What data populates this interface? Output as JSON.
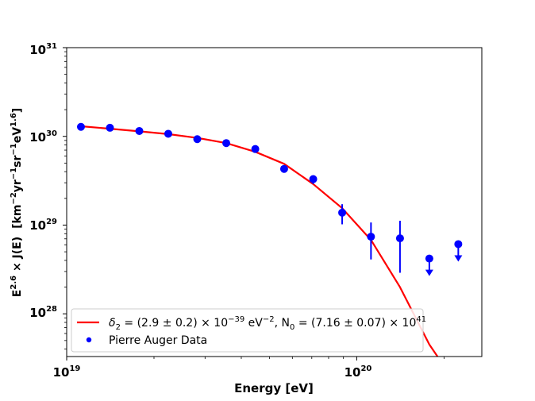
{
  "chart_data": {
    "type": "scatter",
    "xscale": "log",
    "yscale": "log",
    "xlim": [
      1e+19,
      2.7e+20
    ],
    "ylim": [
      3.3e+27,
      1e+31
    ],
    "xlabel": "Energy [eV]",
    "ylabel": {
      "base": "E",
      "exp_e": "2.6",
      "times_j": " × J(E)",
      "units_open": "[km",
      "exp_km": "−2",
      "yr": "yr",
      "exp_yr": "−1",
      "sr": "sr",
      "exp_sr": "−1",
      "ev": "eV",
      "exp_ev": "1.6",
      "units_close": "]"
    },
    "x_ticks": [
      {
        "value": 1e+19,
        "base": "10",
        "exp": "19"
      },
      {
        "value": 1e+20,
        "base": "10",
        "exp": "20"
      }
    ],
    "y_ticks": [
      {
        "value": 1e+28,
        "base": "10",
        "exp": "28"
      },
      {
        "value": 1e+29,
        "base": "10",
        "exp": "29"
      },
      {
        "value": 1e+30,
        "base": "10",
        "exp": "30"
      },
      {
        "value": 1e+31,
        "base": "10",
        "exp": "31"
      }
    ],
    "series": [
      {
        "kind": "line",
        "color": "#ff0000",
        "x": [
          1.12e+19,
          1.41e+19,
          1.78e+19,
          2.24e+19,
          2.82e+19,
          3.55e+19,
          4.47e+19,
          5.62e+19,
          7.08e+19,
          8.91e+19,
          1.12e+20,
          1.41e+20,
          1.78e+20,
          1.9e+20
        ],
        "y": [
          1.3e+30,
          1.22e+30,
          1.14e+30,
          1.06e+30,
          9.6e+29,
          8.4e+29,
          6.7e+29,
          4.9e+29,
          2.9e+29,
          1.55e+29,
          6.8e+28,
          2e+28,
          4.5e+27,
          3.3e+27
        ]
      },
      {
        "name": "Pierre Auger Data",
        "kind": "points",
        "color": "#0000ff",
        "points": [
          {
            "x": 1.12e+19,
            "y": 1.28e+30,
            "lo": 1.24e+30,
            "hi": 1.32e+30
          },
          {
            "x": 1.41e+19,
            "y": 1.25e+30,
            "lo": 1.21e+30,
            "hi": 1.29e+30
          },
          {
            "x": 1.78e+19,
            "y": 1.15e+30,
            "lo": 1.11e+30,
            "hi": 1.19e+30
          },
          {
            "x": 2.24e+19,
            "y": 1.07e+30,
            "lo": 1.03e+30,
            "hi": 1.11e+30
          },
          {
            "x": 2.82e+19,
            "y": 9.3e+29,
            "lo": 8.9e+29,
            "hi": 9.7e+29
          },
          {
            "x": 3.55e+19,
            "y": 8.4e+29,
            "lo": 8e+29,
            "hi": 8.8e+29
          },
          {
            "x": 4.47e+19,
            "y": 7.2e+29,
            "lo": 6.8e+29,
            "hi": 7.6e+29
          },
          {
            "x": 5.62e+19,
            "y": 4.3e+29,
            "lo": 4e+29,
            "hi": 4.6e+29
          },
          {
            "x": 7.08e+19,
            "y": 3.3e+29,
            "lo": 2.9e+29,
            "hi": 3.6e+29
          },
          {
            "x": 8.91e+19,
            "y": 1.38e+29,
            "lo": 1.02e+29,
            "hi": 1.72e+29
          },
          {
            "x": 1.12e+20,
            "y": 7.4e+28,
            "lo": 4.1e+28,
            "hi": 1.07e+29
          },
          {
            "x": 1.41e+20,
            "y": 7.1e+28,
            "lo": 2.9e+28,
            "hi": 1.12e+29
          },
          {
            "x": 1.78e+20,
            "y": 4.2e+28,
            "upper_limit": true
          },
          {
            "x": 2.24e+20,
            "y": 6.1e+28,
            "upper_limit": true
          }
        ]
      }
    ],
    "legend": {
      "placement": "lower-left",
      "line_entry": {
        "delta": "δ",
        "delta_sub": "2",
        "eq1": " = (2.9 ± 0.2) × 10",
        "exp1": "−39",
        "ev_unit": " eV",
        "exp2": "−2",
        "n_part": ", N",
        "n_sub": "0",
        "eq2": " = (7.16 ± 0.07) × 10",
        "exp3": "41"
      },
      "points_label": "Pierre Auger Data"
    }
  }
}
